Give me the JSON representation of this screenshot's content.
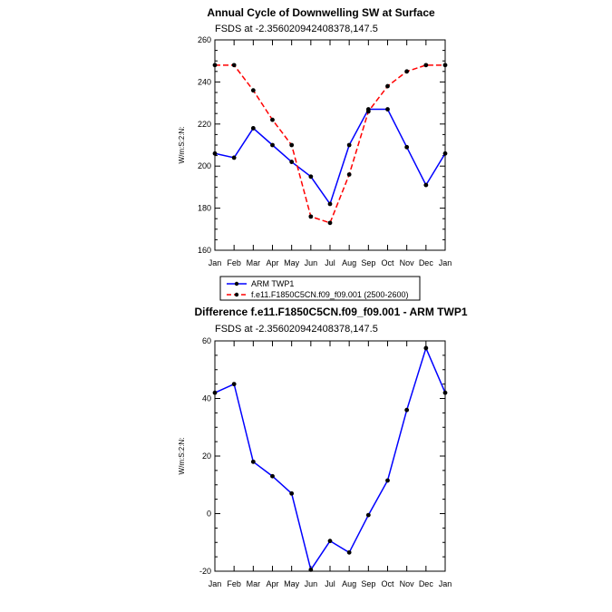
{
  "chart_data": [
    {
      "type": "line",
      "title": "Annual Cycle of Downwelling SW at Surface",
      "subtitle": "FSDS at -2.356020942408378,147.5",
      "ylabel": "W/m:S:2:N:",
      "xlabel": "",
      "ylim": [
        160,
        260
      ],
      "yticks": [
        160,
        180,
        200,
        220,
        240,
        260
      ],
      "categories": [
        "Jan",
        "Feb",
        "Mar",
        "Apr",
        "May",
        "Jun",
        "Jul",
        "Aug",
        "Sep",
        "Oct",
        "Nov",
        "Dec",
        "Jan"
      ],
      "legend_position": "bottom",
      "series": [
        {
          "name": "ARM TWP1",
          "color": "#0000ff",
          "style": "solid",
          "values": [
            206,
            204,
            218,
            210,
            202,
            195,
            182,
            210,
            227,
            227,
            209,
            191,
            206
          ]
        },
        {
          "name": "f.e11.F1850C5CN.f09_f09.001 (2500-2600)",
          "color": "#ff0000",
          "style": "dashed",
          "values": [
            248,
            248,
            236,
            222,
            210,
            176,
            173,
            196,
            226,
            238,
            245,
            248,
            248
          ]
        }
      ]
    },
    {
      "type": "line",
      "title": "Difference f.e11.F1850C5CN.f09_f09.001 - ARM TWP1",
      "subtitle": "FSDS at -2.356020942408378,147.5",
      "ylabel": "W/m:S:2:N:",
      "xlabel": "",
      "ylim": [
        -20,
        60
      ],
      "yticks": [
        -20,
        0,
        20,
        40,
        60
      ],
      "categories": [
        "Jan",
        "Feb",
        "Mar",
        "Apr",
        "May",
        "Jun",
        "Jul",
        "Aug",
        "Sep",
        "Oct",
        "Nov",
        "Dec",
        "Jan"
      ],
      "series": [
        {
          "name": "",
          "color": "#0000ff",
          "style": "solid",
          "values": [
            42,
            45,
            18,
            13,
            7,
            -19.5,
            -9.5,
            -13.5,
            -0.5,
            11.5,
            36,
            57.5,
            42
          ]
        }
      ]
    }
  ]
}
